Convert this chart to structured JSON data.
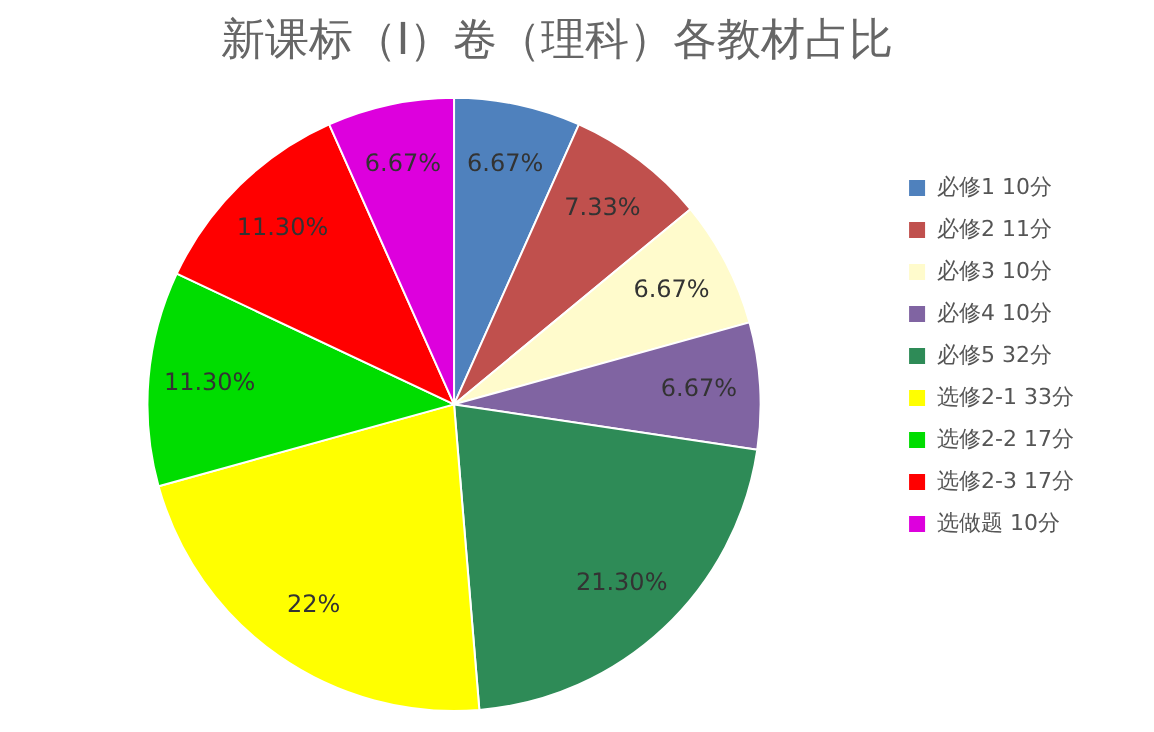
{
  "chart_data": {
    "type": "pie",
    "title": "新课标（Ⅰ）卷（理科）各教材占比",
    "categories": [
      "必修1 10分",
      "必修2 11分",
      "必修3 10分",
      "必修4 10分",
      "必修5 32分",
      "选修2-1 33分",
      "选修2-2 17分",
      "选修2-3 17分",
      "选做题 10分"
    ],
    "values": [
      6.67,
      7.33,
      6.67,
      6.67,
      21.3,
      22,
      11.3,
      11.3,
      6.67
    ],
    "value_labels": [
      "6.67%",
      "7.33%",
      "6.67%",
      "6.67%",
      "21.30%",
      "22%",
      "11.30%",
      "11.30%",
      "6.67%"
    ],
    "colors": [
      "#4f81bd",
      "#c0504d",
      "#fffbcc",
      "#8064a2",
      "#2e8b57",
      "#ffff00",
      "#00dd00",
      "#ff0000",
      "#dd00dd"
    ],
    "legend": "right"
  }
}
